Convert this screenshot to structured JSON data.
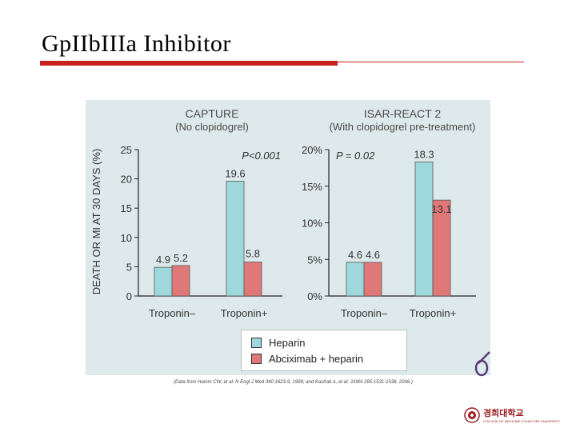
{
  "slide": {
    "title": "GpIIbIIIa Inhibitor",
    "source_note": "(Data from Hamm CW, et al: N Engl J Med 340:1623-9, 1999; and Kastrati A, et al: JAMA 295:1531-1538, 2006.)",
    "institution": {
      "name": "경희대학교",
      "subtitle": "COLLEGE OF MEDICINE KYUNG HEE UNIVERSITY"
    }
  },
  "colors": {
    "heparin": "#9ed8dc",
    "abciximab": "#e07878",
    "accent": "#c9211e",
    "panel": "#dde9ea"
  },
  "chart_data": [
    {
      "type": "bar",
      "title": "CAPTURE",
      "subtitle": "(No clopidogrel)",
      "ylabel": "DEATH OR MI AT 30 DAYS (%)",
      "ylim": [
        0,
        25
      ],
      "yticks": [
        "25",
        "20",
        "15",
        "10",
        "5",
        "0"
      ],
      "yticks_values": [
        25,
        20,
        15,
        10,
        5,
        0
      ],
      "categories": [
        "Troponin–",
        "Troponin+"
      ],
      "annotation": "P<0.001",
      "series": [
        {
          "name": "Heparin",
          "values": [
            4.9,
            19.6
          ],
          "labels": [
            "4.9",
            "19.6"
          ]
        },
        {
          "name": "Abciximab + heparin",
          "values": [
            5.2,
            5.8
          ],
          "labels": [
            "5.2",
            "5.8"
          ]
        }
      ]
    },
    {
      "type": "bar",
      "title": "ISAR-REACT 2",
      "subtitle": "(With clopidogrel pre-treatment)",
      "ylim": [
        0,
        20
      ],
      "yticks": [
        "20%",
        "15%",
        "10%",
        "5%",
        "0%"
      ],
      "yticks_values": [
        20,
        15,
        10,
        5,
        0
      ],
      "categories": [
        "Troponin–",
        "Troponin+"
      ],
      "annotation": "P = 0.02",
      "series": [
        {
          "name": "Heparin",
          "values": [
            4.6,
            18.3
          ],
          "labels": [
            "4.6",
            "18.3"
          ]
        },
        {
          "name": "Abciximab + heparin",
          "values": [
            4.6,
            13.1
          ],
          "labels": [
            "4.6",
            "13.1"
          ]
        }
      ]
    }
  ],
  "legend": {
    "items": [
      "Heparin",
      "Abciximab + heparin"
    ]
  }
}
